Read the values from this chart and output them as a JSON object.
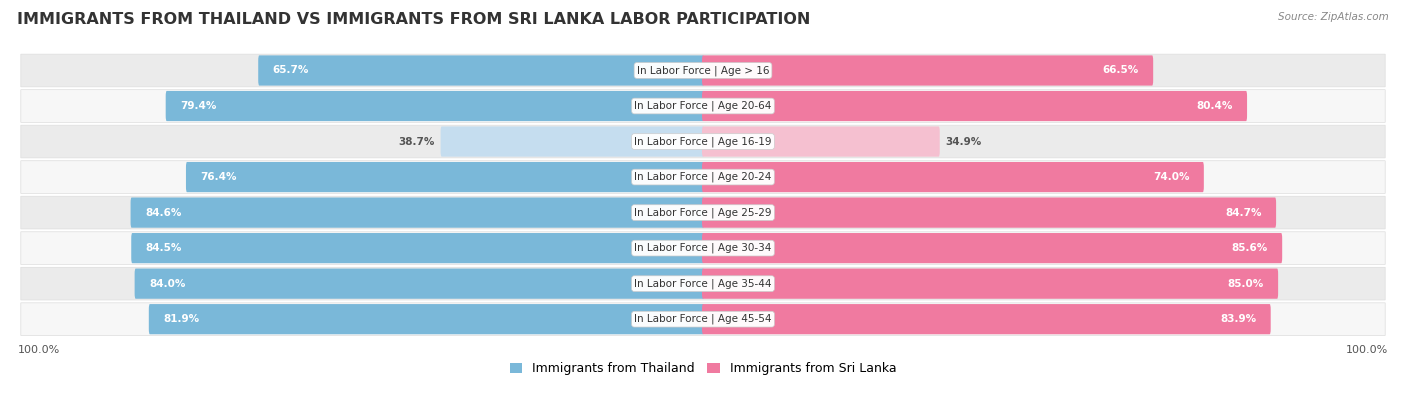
{
  "title": "IMMIGRANTS FROM THAILAND VS IMMIGRANTS FROM SRI LANKA LABOR PARTICIPATION",
  "source": "Source: ZipAtlas.com",
  "categories": [
    "In Labor Force | Age > 16",
    "In Labor Force | Age 20-64",
    "In Labor Force | Age 16-19",
    "In Labor Force | Age 20-24",
    "In Labor Force | Age 25-29",
    "In Labor Force | Age 30-34",
    "In Labor Force | Age 35-44",
    "In Labor Force | Age 45-54"
  ],
  "thailand_values": [
    65.7,
    79.4,
    38.7,
    76.4,
    84.6,
    84.5,
    84.0,
    81.9
  ],
  "srilanka_values": [
    66.5,
    80.4,
    34.9,
    74.0,
    84.7,
    85.6,
    85.0,
    83.9
  ],
  "thailand_color": "#7ab8d9",
  "thailand_color_light": "#c5ddef",
  "srilanka_color": "#f07aa0",
  "srilanka_color_light": "#f5c0d0",
  "row_bg_even": "#ebebeb",
  "row_bg_odd": "#f7f7f7",
  "max_value": 100.0,
  "title_fontsize": 11.5,
  "label_fontsize": 7.5,
  "value_fontsize": 7.5,
  "legend_fontsize": 9,
  "axis_label_fontsize": 8,
  "background_color": "#ffffff"
}
